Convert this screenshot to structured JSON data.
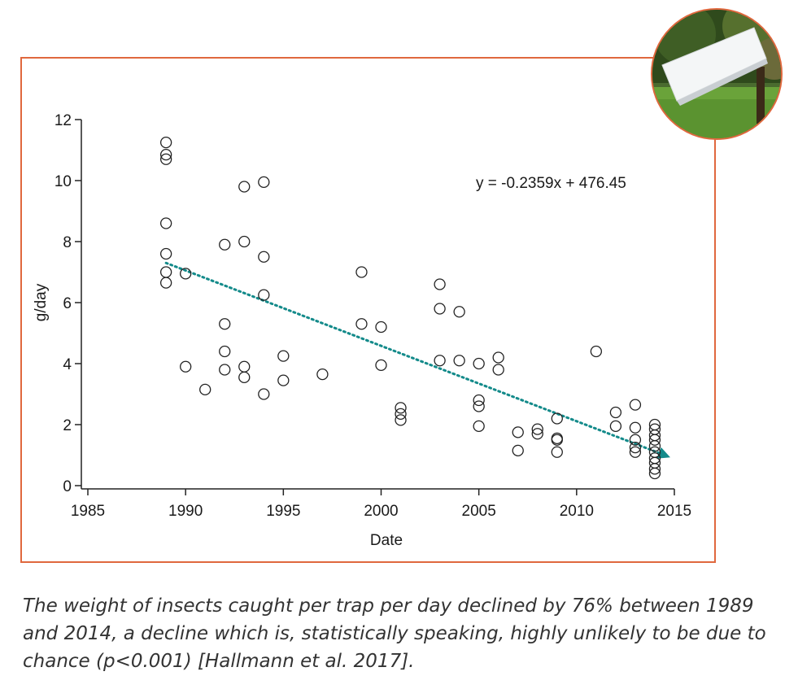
{
  "caption": "The weight of insects caught per trap per day declined by 76% between 1989 and 2014, a decline which is, statistically speaking, highly unlikely to be due to chance (p<0.001) [Hallmann et al. 2017].",
  "colors": {
    "frame": "#e0683e",
    "trend": "#138a8a",
    "points": "#222222"
  },
  "chart_data": {
    "type": "scatter",
    "xlabel": "Date",
    "ylabel": "g/day",
    "xlim": [
      1985,
      2015
    ],
    "ylim": [
      0,
      12
    ],
    "xticks": [
      1985,
      1990,
      1995,
      2000,
      2005,
      2010,
      2015
    ],
    "yticks": [
      0,
      2,
      4,
      6,
      8,
      10,
      12
    ],
    "grid": false,
    "annotation": "y = -0.2359x + 476.45",
    "trendline": {
      "x": [
        1989,
        2014.5
      ],
      "y": [
        7.3,
        1.0
      ],
      "style": "dotted",
      "arrow": true
    },
    "points": [
      {
        "x": 1989,
        "y": 11.25
      },
      {
        "x": 1989,
        "y": 10.85
      },
      {
        "x": 1989,
        "y": 10.7
      },
      {
        "x": 1989,
        "y": 8.6
      },
      {
        "x": 1989,
        "y": 7.6
      },
      {
        "x": 1989,
        "y": 7.0
      },
      {
        "x": 1989,
        "y": 6.65
      },
      {
        "x": 1990,
        "y": 6.95
      },
      {
        "x": 1990,
        "y": 3.9
      },
      {
        "x": 1991,
        "y": 3.15
      },
      {
        "x": 1992,
        "y": 7.9
      },
      {
        "x": 1992,
        "y": 5.3
      },
      {
        "x": 1992,
        "y": 4.4
      },
      {
        "x": 1992,
        "y": 3.8
      },
      {
        "x": 1993,
        "y": 9.8
      },
      {
        "x": 1993,
        "y": 8.0
      },
      {
        "x": 1993,
        "y": 3.9
      },
      {
        "x": 1993,
        "y": 3.55
      },
      {
        "x": 1994,
        "y": 9.95
      },
      {
        "x": 1994,
        "y": 7.5
      },
      {
        "x": 1994,
        "y": 6.25
      },
      {
        "x": 1994,
        "y": 3.0
      },
      {
        "x": 1995,
        "y": 4.25
      },
      {
        "x": 1995,
        "y": 3.45
      },
      {
        "x": 1997,
        "y": 3.65
      },
      {
        "x": 1999,
        "y": 7.0
      },
      {
        "x": 1999,
        "y": 5.3
      },
      {
        "x": 2000,
        "y": 5.2
      },
      {
        "x": 2000,
        "y": 3.95
      },
      {
        "x": 2001,
        "y": 2.55
      },
      {
        "x": 2001,
        "y": 2.35
      },
      {
        "x": 2001,
        "y": 2.15
      },
      {
        "x": 2003,
        "y": 6.6
      },
      {
        "x": 2003,
        "y": 5.8
      },
      {
        "x": 2003,
        "y": 4.1
      },
      {
        "x": 2004,
        "y": 5.7
      },
      {
        "x": 2004,
        "y": 4.1
      },
      {
        "x": 2005,
        "y": 4.0
      },
      {
        "x": 2005,
        "y": 2.8
      },
      {
        "x": 2005,
        "y": 2.6
      },
      {
        "x": 2005,
        "y": 1.95
      },
      {
        "x": 2006,
        "y": 4.2
      },
      {
        "x": 2006,
        "y": 3.8
      },
      {
        "x": 2007,
        "y": 1.75
      },
      {
        "x": 2007,
        "y": 1.15
      },
      {
        "x": 2008,
        "y": 1.85
      },
      {
        "x": 2008,
        "y": 1.7
      },
      {
        "x": 2009,
        "y": 2.2
      },
      {
        "x": 2009,
        "y": 1.55
      },
      {
        "x": 2009,
        "y": 1.5
      },
      {
        "x": 2009,
        "y": 1.1
      },
      {
        "x": 2011,
        "y": 4.4
      },
      {
        "x": 2012,
        "y": 2.4
      },
      {
        "x": 2012,
        "y": 1.95
      },
      {
        "x": 2013,
        "y": 2.65
      },
      {
        "x": 2013,
        "y": 1.9
      },
      {
        "x": 2013,
        "y": 1.5
      },
      {
        "x": 2013,
        "y": 1.25
      },
      {
        "x": 2013,
        "y": 1.1
      },
      {
        "x": 2014,
        "y": 2.0
      },
      {
        "x": 2014,
        "y": 1.85
      },
      {
        "x": 2014,
        "y": 1.65
      },
      {
        "x": 2014,
        "y": 1.5
      },
      {
        "x": 2014,
        "y": 1.3
      },
      {
        "x": 2014,
        "y": 1.1
      },
      {
        "x": 2014,
        "y": 0.9
      },
      {
        "x": 2014,
        "y": 0.75
      },
      {
        "x": 2014,
        "y": 0.55
      },
      {
        "x": 2014,
        "y": 0.4
      }
    ]
  }
}
